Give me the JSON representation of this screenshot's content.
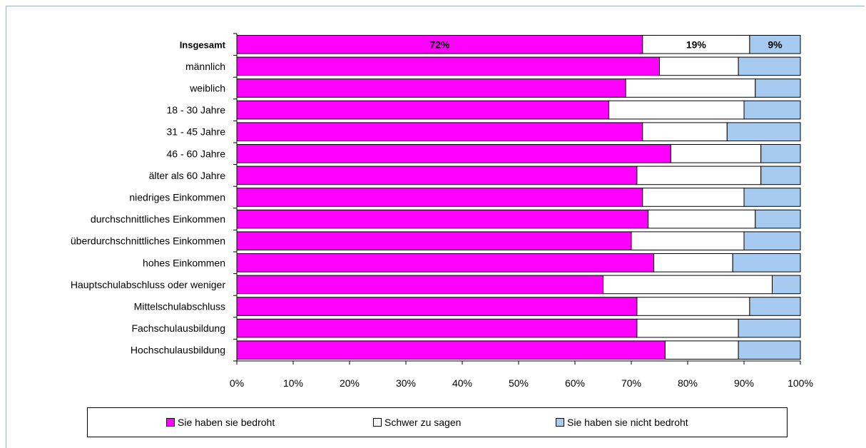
{
  "chart_data": {
    "type": "bar",
    "orientation": "horizontal",
    "stacked": true,
    "percent_stacked": true,
    "categories": [
      "Insgesamt",
      "männlich",
      "weiblich",
      "18 - 30 Jahre",
      "31 - 45 Jahre",
      "46 - 60 Jahre",
      "älter als 60 Jahre",
      "niedriges Einkommen",
      "durchschnittliches Einkommen",
      "überdurchschnittliches Einkommen",
      "hohes Einkommen",
      "Hauptschulabschluss oder weniger",
      "Mittelschulabschluss",
      "Fachschulausbildung",
      "Hochschulausbildung"
    ],
    "series": [
      {
        "name": "Sie haben sie bedroht",
        "color": "#ff00ff",
        "values": [
          72,
          75,
          69,
          66,
          72,
          77,
          71,
          72,
          73,
          70,
          74,
          65,
          71,
          71,
          76
        ]
      },
      {
        "name": "Schwer zu sagen",
        "color": "#ffffff",
        "values": [
          19,
          14,
          23,
          24,
          15,
          16,
          22,
          18,
          19,
          20,
          14,
          30,
          20,
          18,
          13
        ]
      },
      {
        "name": "Sie haben sie nicht bedroht",
        "color": "#a6caf0",
        "values": [
          9,
          11,
          8,
          10,
          13,
          7,
          7,
          10,
          8,
          10,
          12,
          5,
          9,
          11,
          11
        ]
      }
    ],
    "data_labels": {
      "Insgesamt": [
        "72%",
        "19%",
        "9%"
      ]
    },
    "x_ticks": [
      "0%",
      "10%",
      "20%",
      "30%",
      "40%",
      "50%",
      "60%",
      "70%",
      "80%",
      "90%",
      "100%"
    ],
    "xlim": [
      0,
      100
    ],
    "grid": false,
    "legend_position": "bottom"
  }
}
